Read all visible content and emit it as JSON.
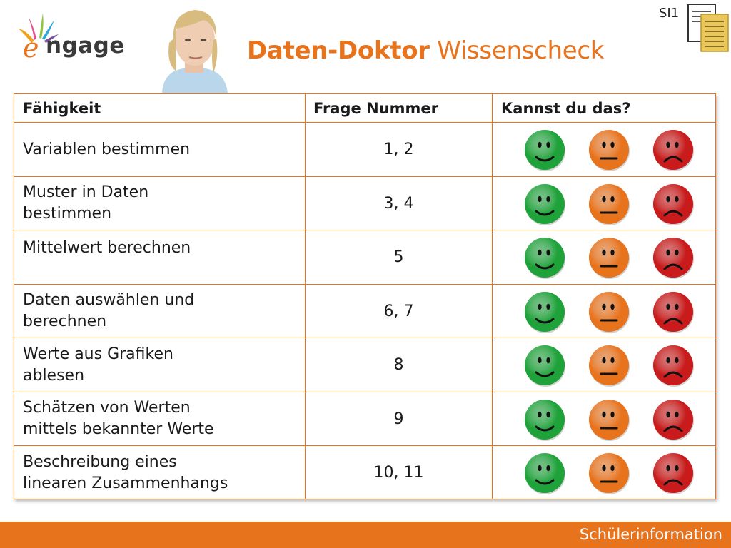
{
  "header": {
    "logo_text": "ngage",
    "logo_letter": "e",
    "title_bold": "Daten-Doktor",
    "title_rest": "Wissenscheck",
    "slide_code": "SI1",
    "colors": {
      "accent": "#e8731d",
      "green": "#1fa33b",
      "orange": "#e8731d",
      "red": "#c91c1c"
    }
  },
  "table": {
    "columns": [
      "Fähigkeit",
      "Frage Nummer",
      "Kannst du das?"
    ],
    "rows": [
      {
        "skill": "Variablen bestimmen",
        "questions": "1, 2"
      },
      {
        "skill": "Muster in Daten bestimmen",
        "questions": "3, 4"
      },
      {
        "skill": "Mittelwert berechnen",
        "questions": "5"
      },
      {
        "skill": "Daten auswählen und berechnen",
        "questions": "6, 7"
      },
      {
        "skill": "Werte aus Grafiken ablesen",
        "questions": "8"
      },
      {
        "skill": "Schätzen von Werten mittels bekannter Werte",
        "questions": "9"
      },
      {
        "skill": "Beschreibung eines linearen Zusammenhangs",
        "questions": "10, 11"
      }
    ],
    "face_icons": [
      "happy-face-icon",
      "neutral-face-icon",
      "sad-face-icon"
    ]
  },
  "footer": {
    "label": "Schülerinformation"
  }
}
